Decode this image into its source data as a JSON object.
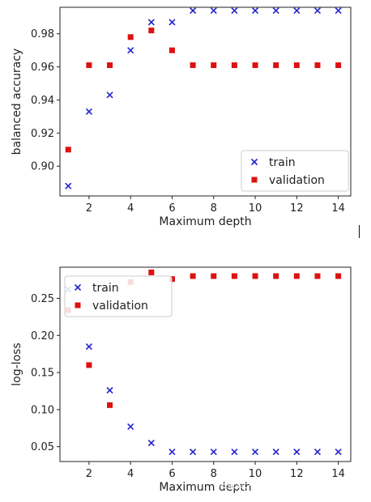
{
  "chart_data": [
    {
      "type": "scatter",
      "xlabel": "Maximum depth",
      "ylabel": "balanced accuracy",
      "xlim": [
        0.6,
        14.6
      ],
      "ylim": [
        0.882,
        0.996
      ],
      "xticks": [
        2,
        4,
        6,
        8,
        10,
        12,
        14
      ],
      "yticks": [
        0.9,
        0.92,
        0.94,
        0.96,
        0.98
      ],
      "ytick_labels": [
        "0.90",
        "0.92",
        "0.94",
        "0.96",
        "0.98"
      ],
      "legend_position": "lower-right",
      "grid": false,
      "series": [
        {
          "name": "train",
          "marker": "x",
          "color": "#2222cc",
          "x": [
            1,
            2,
            3,
            4,
            5,
            6,
            7,
            8,
            9,
            10,
            11,
            12,
            13,
            14
          ],
          "values": [
            0.888,
            0.933,
            0.943,
            0.97,
            0.987,
            0.987,
            0.994,
            0.994,
            0.994,
            0.994,
            0.994,
            0.994,
            0.994,
            0.994
          ]
        },
        {
          "name": "validation",
          "marker": "square",
          "color": "#dd1111",
          "x": [
            1,
            2,
            3,
            4,
            5,
            6,
            7,
            8,
            9,
            10,
            11,
            12,
            13,
            14
          ],
          "values": [
            0.91,
            0.961,
            0.961,
            0.978,
            0.982,
            0.97,
            0.961,
            0.961,
            0.961,
            0.961,
            0.961,
            0.961,
            0.961,
            0.961
          ]
        }
      ]
    },
    {
      "type": "scatter",
      "xlabel": "Maximum depth",
      "ylabel": "log-loss",
      "xlim": [
        0.6,
        14.6
      ],
      "ylim": [
        0.03,
        0.292
      ],
      "xticks": [
        2,
        4,
        6,
        8,
        10,
        12,
        14
      ],
      "yticks": [
        0.05,
        0.1,
        0.15,
        0.2,
        0.25
      ],
      "ytick_labels": [
        "0.05",
        "0.10",
        "0.15",
        "0.20",
        "0.25"
      ],
      "legend_position": "upper-left",
      "grid": false,
      "series": [
        {
          "name": "train",
          "marker": "x",
          "color": "#2222cc",
          "x": [
            1,
            2,
            3,
            4,
            5,
            6,
            7,
            8,
            9,
            10,
            11,
            12,
            13,
            14
          ],
          "values": [
            0.262,
            0.185,
            0.126,
            0.077,
            0.055,
            0.043,
            0.043,
            0.043,
            0.043,
            0.043,
            0.043,
            0.043,
            0.043,
            0.043
          ]
        },
        {
          "name": "validation",
          "marker": "square",
          "color": "#dd1111",
          "x": [
            1,
            2,
            3,
            4,
            5,
            6,
            7,
            8,
            9,
            10,
            11,
            12,
            13,
            14
          ],
          "values": [
            0.234,
            0.16,
            0.106,
            0.272,
            0.285,
            0.276,
            0.28,
            0.28,
            0.28,
            0.28,
            0.28,
            0.28,
            0.28,
            0.28
          ]
        }
      ]
    }
  ],
  "watermark": "掘金技术社区 @ 布客飞龙"
}
